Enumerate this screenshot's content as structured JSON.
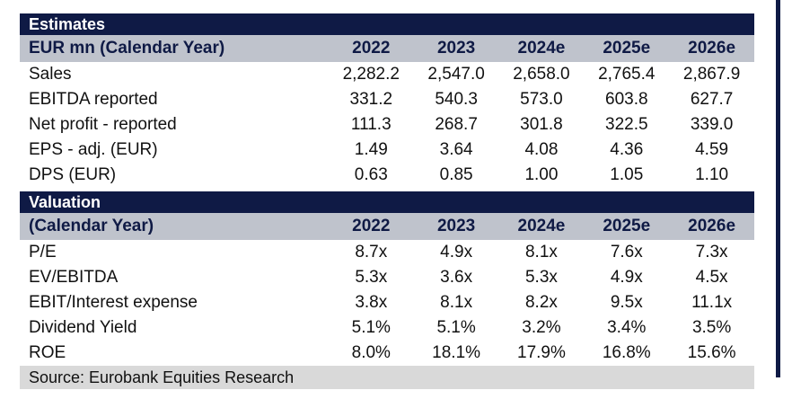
{
  "estimates": {
    "title": "Estimates",
    "header": {
      "label": "EUR mn (Calendar Year)",
      "years": [
        "2022",
        "2023",
        "2024e",
        "2025e",
        "2026e"
      ]
    },
    "rows": [
      {
        "label": "Sales",
        "values": [
          "2,282.2",
          "2,547.0",
          "2,658.0",
          "2,765.4",
          "2,867.9"
        ]
      },
      {
        "label": "EBITDA reported",
        "values": [
          "331.2",
          "540.3",
          "573.0",
          "603.8",
          "627.7"
        ]
      },
      {
        "label": "Net profit - reported",
        "values": [
          "111.3",
          "268.7",
          "301.8",
          "322.5",
          "339.0"
        ]
      },
      {
        "label": "EPS - adj. (EUR)",
        "values": [
          "1.49",
          "3.64",
          "4.08",
          "4.36",
          "4.59"
        ]
      },
      {
        "label": "DPS (EUR)",
        "values": [
          "0.63",
          "0.85",
          "1.00",
          "1.05",
          "1.10"
        ]
      }
    ]
  },
  "valuation": {
    "title": "Valuation",
    "header": {
      "label": "(Calendar Year)",
      "years": [
        "2022",
        "2023",
        "2024e",
        "2025e",
        "2026e"
      ]
    },
    "rows": [
      {
        "label": "P/E",
        "values": [
          "8.7x",
          "4.9x",
          "8.1x",
          "7.6x",
          "7.3x"
        ]
      },
      {
        "label": "EV/EBITDA",
        "values": [
          "5.3x",
          "3.6x",
          "5.3x",
          "4.9x",
          "4.5x"
        ]
      },
      {
        "label": "EBIT/Interest expense",
        "values": [
          "3.8x",
          "8.1x",
          "8.2x",
          "9.5x",
          "11.1x"
        ]
      },
      {
        "label": "Dividend Yield",
        "values": [
          "5.1%",
          "5.1%",
          "3.2%",
          "3.4%",
          "3.5%"
        ]
      },
      {
        "label": "ROE",
        "values": [
          "8.0%",
          "18.1%",
          "17.9%",
          "16.8%",
          "15.6%"
        ]
      }
    ]
  },
  "source": "Source: Eurobank Equities Research",
  "colors": {
    "navy": "#0f1a45",
    "header_gray": "#bfc3cc",
    "source_gray": "#d9d9d9"
  }
}
